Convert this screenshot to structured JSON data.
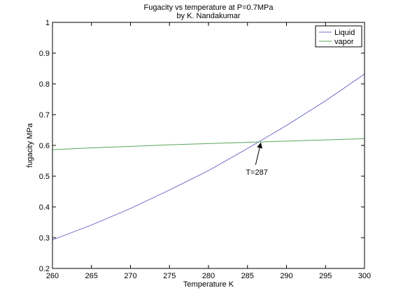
{
  "chart_data": {
    "type": "line",
    "title": "Fugacity vs temperature at P=0.7MPa",
    "subtitle": "by K. Nandakumar",
    "xlabel": "Temperature K",
    "ylabel": "fugacity MPa",
    "xlim": [
      260,
      300
    ],
    "ylim": [
      0.2,
      1.0
    ],
    "xticks": [
      260,
      265,
      270,
      275,
      280,
      285,
      290,
      295,
      300
    ],
    "yticks": [
      0.2,
      0.3,
      0.4,
      0.5,
      0.6,
      0.7,
      0.8,
      0.9,
      1.0
    ],
    "ytick_labels": [
      "0.2",
      "0.3",
      "0.4",
      "0.5",
      "0.6",
      "0.7",
      "0.8",
      "0.9",
      "1"
    ],
    "grid": false,
    "legend_position": "top-right",
    "series": [
      {
        "name": "Liquid",
        "color": "#6f6fc9",
        "x": [
          260,
          265,
          270,
          275,
          280,
          285,
          290,
          295,
          300
        ],
        "y": [
          0.293,
          0.341,
          0.395,
          0.455,
          0.518,
          0.59,
          0.665,
          0.745,
          0.832
        ]
      },
      {
        "name": "vapor",
        "color": "#5aa65a",
        "x": [
          260,
          265,
          270,
          275,
          280,
          285,
          290,
          295,
          300
        ],
        "y": [
          0.586,
          0.592,
          0.597,
          0.602,
          0.606,
          0.61,
          0.614,
          0.618,
          0.622
        ]
      }
    ],
    "annotations": [
      {
        "text": "T=287",
        "point": [
          286.7,
          0.612
        ],
        "text_at": [
          285.5,
          0.505
        ]
      }
    ]
  }
}
